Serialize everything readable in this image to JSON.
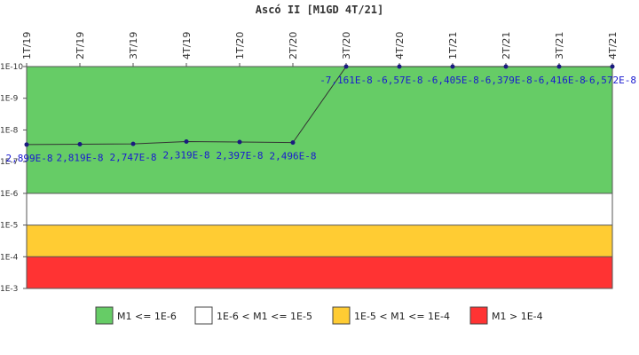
{
  "chart_data": {
    "type": "line",
    "title": "Ascó II [M1GD 4T/21]",
    "y_scale": "log",
    "y_reversed": true,
    "ylim": [
      1e-10,
      0.001
    ],
    "y_ticks": [
      "1E-10",
      "1E-9",
      "1E-8",
      "1E-7",
      "1E-6",
      "1E-5",
      "1E-4",
      "1E-3"
    ],
    "categories": [
      "1T/19",
      "2T/19",
      "3T/19",
      "4T/19",
      "1T/20",
      "2T/20",
      "3T/20",
      "4T/20",
      "1T/21",
      "2T/21",
      "3T/21",
      "4T/21"
    ],
    "values": [
      2.899e-08,
      2.819e-08,
      2.747e-08,
      2.319e-08,
      2.397e-08,
      2.496e-08,
      -7.161e-08,
      -6.57e-08,
      -6.405e-08,
      -6.379e-08,
      -6.416e-08,
      -6.572e-08
    ],
    "data_labels": [
      "2,899E-8",
      "2,819E-8",
      "2,747E-8",
      "2,319E-8",
      "2,397E-8",
      "2,496E-8",
      "-7,161E-8",
      "-6,57E-8",
      "-6,405E-8",
      "-6,379E-8",
      "-6,416E-8",
      "-6,572E-8"
    ],
    "bands": [
      {
        "label": "M1 <= 1E-6",
        "from": 1e-10,
        "to": 1e-06,
        "color": "#66cc66"
      },
      {
        "label": "1E-6 < M1 <= 1E-5",
        "from": 1e-06,
        "to": 1e-05,
        "color": "#ffffff"
      },
      {
        "label": "1E-5 < M1 <= 1E-4",
        "from": 1e-05,
        "to": 0.0001,
        "color": "#ffcc33"
      },
      {
        "label": "M1 > 1E-4",
        "from": 0.0001,
        "to": 0.001,
        "color": "#ff3333"
      }
    ],
    "line_color": "#333333",
    "marker_color": "#1a1a80",
    "label_color": "#1a1ad0",
    "legend_position": "bottom",
    "grid": false
  }
}
